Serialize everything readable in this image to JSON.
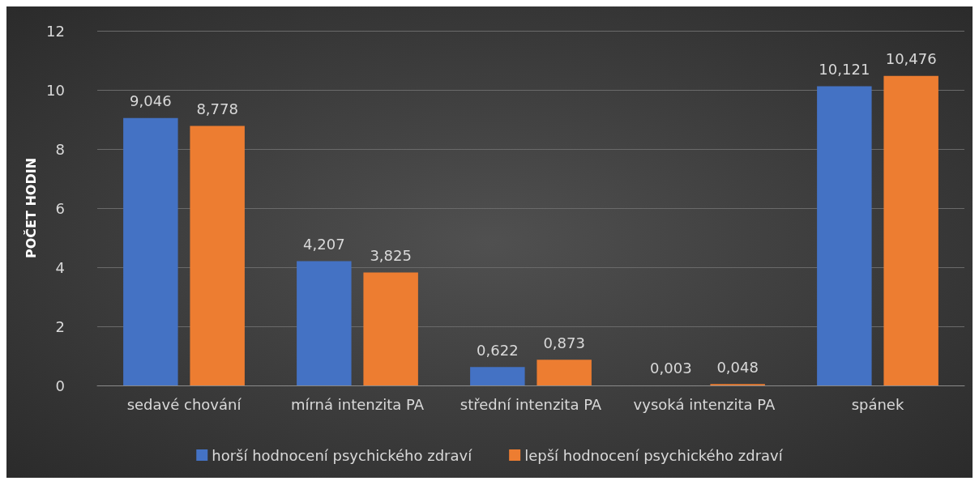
{
  "chart_data": {
    "type": "bar",
    "ylabel": "POČET HODIN",
    "categories": [
      "sedavé chování",
      "mírná intenzita PA",
      "střední intenzita PA",
      "vysoká intenzita PA",
      "spánek"
    ],
    "series": [
      {
        "name": "horší hodnocení psychického zdraví",
        "color": "#4472c4",
        "values": [
          9.046,
          4.207,
          0.622,
          0.003,
          10.121
        ],
        "value_labels": [
          "9,046",
          "4,207",
          "0,622",
          "0,003",
          "10,121"
        ]
      },
      {
        "name": "lepší hodnocení psychického zdraví",
        "color": "#ed7d31",
        "values": [
          8.778,
          3.825,
          0.873,
          0.048,
          10.476
        ],
        "value_labels": [
          "8,778",
          "3,825",
          "0,873",
          "0,048",
          "10,476"
        ]
      }
    ],
    "ylim": [
      0,
      12
    ],
    "yticks": [
      0,
      2,
      4,
      6,
      8,
      10,
      12
    ],
    "grid": "y",
    "legend": "bottom"
  }
}
